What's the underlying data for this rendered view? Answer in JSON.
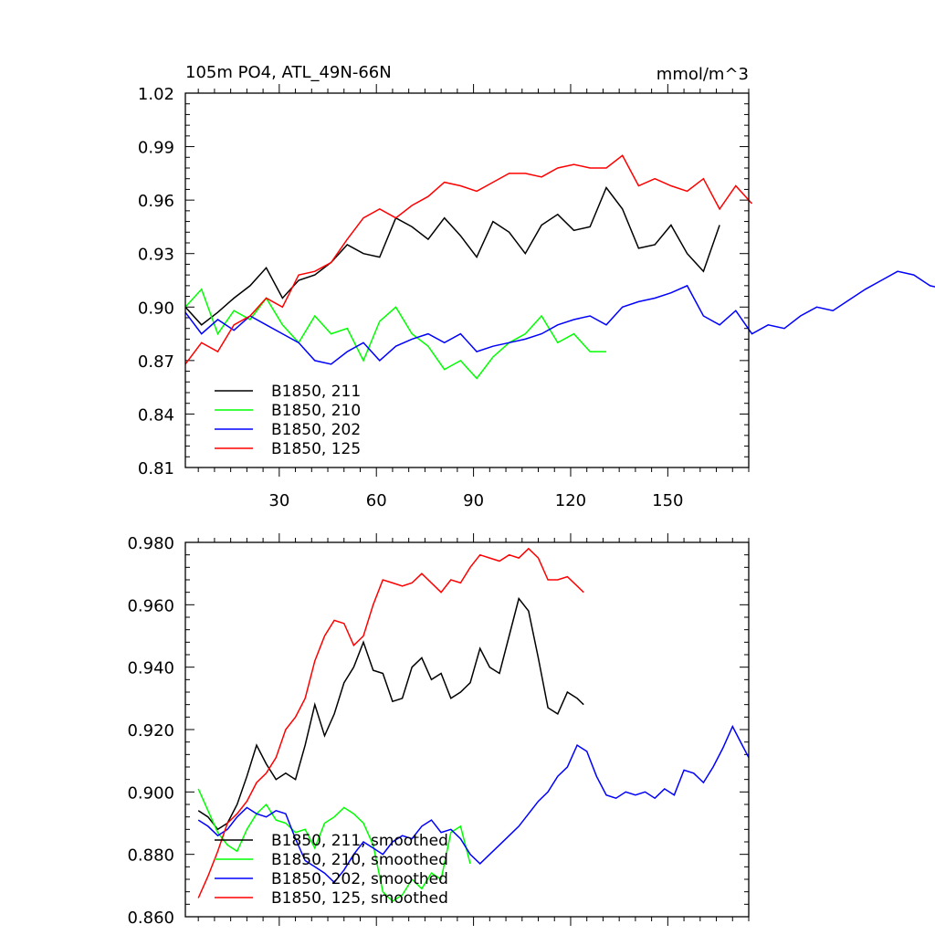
{
  "chart_data": [
    {
      "type": "line",
      "title": "105m PO4, ATL_49N-66N",
      "units": "mmol/m^3",
      "xlim": [
        1,
        175
      ],
      "ylim": [
        0.81,
        1.02
      ],
      "x_ticks": [
        30,
        60,
        90,
        120,
        150
      ],
      "x_tick_labels": [
        "30",
        "60",
        "90",
        "120",
        "150"
      ],
      "y_ticks": [
        0.81,
        0.84,
        0.87,
        0.9,
        0.93,
        0.96,
        0.99,
        1.02
      ],
      "y_tick_labels": [
        "0.81",
        "0.84",
        "0.87",
        "0.90",
        "0.93",
        "0.96",
        "0.99",
        "1.02"
      ],
      "legend_position": "bottom-left",
      "series": [
        {
          "name": "B1850, 211",
          "color": "#000000",
          "x_start": 1,
          "x_step": 5,
          "values": [
            0.9,
            0.89,
            0.897,
            0.905,
            0.912,
            0.922,
            0.905,
            0.915,
            0.918,
            0.925,
            0.935,
            0.93,
            0.928,
            0.95,
            0.945,
            0.938,
            0.95,
            0.94,
            0.928,
            0.948,
            0.942,
            0.93,
            0.946,
            0.952,
            0.943,
            0.945,
            0.967,
            0.955,
            0.933,
            0.935,
            0.946,
            0.93,
            0.92,
            0.946
          ]
        },
        {
          "name": "B1850, 210",
          "color": "#00ff00",
          "x_start": 1,
          "x_step": 5,
          "values": [
            0.9,
            0.91,
            0.885,
            0.898,
            0.893,
            0.905,
            0.89,
            0.88,
            0.895,
            0.885,
            0.888,
            0.87,
            0.892,
            0.9,
            0.885,
            0.878,
            0.865,
            0.87,
            0.86,
            0.872,
            0.88,
            0.885,
            0.895,
            0.88,
            0.885,
            0.875,
            0.875
          ]
        },
        {
          "name": "B1850, 202",
          "color": "#0000ff",
          "x_start": 1,
          "x_step": 5,
          "values": [
            0.897,
            0.885,
            0.893,
            0.887,
            0.895,
            0.89,
            0.885,
            0.88,
            0.87,
            0.868,
            0.875,
            0.88,
            0.87,
            0.878,
            0.882,
            0.885,
            0.88,
            0.885,
            0.875,
            0.878,
            0.88,
            0.882,
            0.885,
            0.89,
            0.893,
            0.895,
            0.89,
            0.9,
            0.903,
            0.905,
            0.908,
            0.912,
            0.895,
            0.89,
            0.898,
            0.885,
            0.89,
            0.888,
            0.895,
            0.9,
            0.898,
            0.904,
            0.91,
            0.915,
            0.92,
            0.918,
            0.912,
            0.91
          ]
        },
        {
          "name": "B1850, 125",
          "color": "#ff0000",
          "x_start": 1,
          "x_step": 5,
          "values": [
            0.868,
            0.88,
            0.875,
            0.89,
            0.895,
            0.905,
            0.9,
            0.918,
            0.92,
            0.925,
            0.938,
            0.95,
            0.955,
            0.95,
            0.957,
            0.962,
            0.97,
            0.968,
            0.965,
            0.97,
            0.975,
            0.975,
            0.973,
            0.978,
            0.98,
            0.978,
            0.978,
            0.985,
            0.968,
            0.972,
            0.968,
            0.965,
            0.972,
            0.955,
            0.968,
            0.958
          ]
        }
      ]
    },
    {
      "type": "line",
      "xlim": [
        1,
        175
      ],
      "ylim": [
        0.86,
        0.98
      ],
      "x_ticks": [
        30,
        60,
        90,
        120,
        150
      ],
      "y_ticks": [
        0.86,
        0.88,
        0.9,
        0.92,
        0.94,
        0.96,
        0.98
      ],
      "y_tick_labels": [
        "0.860",
        "0.880",
        "0.900",
        "0.920",
        "0.940",
        "0.960",
        "0.980"
      ],
      "legend_position": "bottom-left",
      "series": [
        {
          "name": "B1850, 211, smoothed",
          "color": "#000000",
          "x_start": 5,
          "points": [
            [
              5,
              0.894
            ],
            [
              8,
              0.892
            ],
            [
              11,
              0.888
            ],
            [
              14,
              0.89
            ],
            [
              17,
              0.896
            ],
            [
              20,
              0.905
            ],
            [
              23,
              0.915
            ],
            [
              26,
              0.909
            ],
            [
              29,
              0.904
            ],
            [
              32,
              0.906
            ],
            [
              35,
              0.904
            ],
            [
              38,
              0.915
            ],
            [
              41,
              0.928
            ],
            [
              44,
              0.918
            ],
            [
              47,
              0.925
            ],
            [
              50,
              0.935
            ],
            [
              53,
              0.94
            ],
            [
              56,
              0.948
            ],
            [
              59,
              0.939
            ],
            [
              62,
              0.938
            ],
            [
              65,
              0.929
            ],
            [
              68,
              0.93
            ],
            [
              71,
              0.94
            ],
            [
              74,
              0.943
            ],
            [
              77,
              0.936
            ],
            [
              80,
              0.938
            ],
            [
              83,
              0.93
            ],
            [
              86,
              0.932
            ],
            [
              89,
              0.935
            ],
            [
              92,
              0.946
            ],
            [
              95,
              0.94
            ],
            [
              98,
              0.938
            ],
            [
              101,
              0.95
            ],
            [
              104,
              0.962
            ],
            [
              107,
              0.958
            ],
            [
              110,
              0.943
            ],
            [
              113,
              0.927
            ],
            [
              116,
              0.925
            ],
            [
              119,
              0.932
            ],
            [
              122,
              0.93
            ],
            [
              124,
              0.928
            ]
          ]
        },
        {
          "name": "B1850, 210, smoothed",
          "color": "#00ff00",
          "x_start": 5,
          "points": [
            [
              5,
              0.901
            ],
            [
              8,
              0.894
            ],
            [
              11,
              0.887
            ],
            [
              14,
              0.883
            ],
            [
              17,
              0.881
            ],
            [
              20,
              0.888
            ],
            [
              23,
              0.893
            ],
            [
              26,
              0.896
            ],
            [
              29,
              0.891
            ],
            [
              32,
              0.89
            ],
            [
              35,
              0.887
            ],
            [
              38,
              0.888
            ],
            [
              41,
              0.882
            ],
            [
              44,
              0.89
            ],
            [
              47,
              0.892
            ],
            [
              50,
              0.895
            ],
            [
              53,
              0.893
            ],
            [
              56,
              0.89
            ],
            [
              59,
              0.883
            ],
            [
              62,
              0.868
            ],
            [
              65,
              0.865
            ],
            [
              68,
              0.867
            ],
            [
              71,
              0.872
            ],
            [
              74,
              0.869
            ],
            [
              77,
              0.874
            ],
            [
              80,
              0.872
            ],
            [
              83,
              0.887
            ],
            [
              86,
              0.889
            ],
            [
              89,
              0.877
            ]
          ]
        },
        {
          "name": "B1850, 202, smoothed",
          "color": "#0000ff",
          "x_start": 5,
          "points": [
            [
              5,
              0.891
            ],
            [
              8,
              0.889
            ],
            [
              11,
              0.886
            ],
            [
              14,
              0.888
            ],
            [
              17,
              0.892
            ],
            [
              20,
              0.895
            ],
            [
              23,
              0.893
            ],
            [
              26,
              0.892
            ],
            [
              29,
              0.894
            ],
            [
              32,
              0.893
            ],
            [
              35,
              0.885
            ],
            [
              38,
              0.878
            ],
            [
              41,
              0.876
            ],
            [
              44,
              0.874
            ],
            [
              47,
              0.871
            ],
            [
              50,
              0.875
            ],
            [
              53,
              0.88
            ],
            [
              56,
              0.884
            ],
            [
              59,
              0.882
            ],
            [
              62,
              0.88
            ],
            [
              65,
              0.884
            ],
            [
              68,
              0.886
            ],
            [
              71,
              0.885
            ],
            [
              74,
              0.889
            ],
            [
              77,
              0.891
            ],
            [
              80,
              0.887
            ],
            [
              83,
              0.888
            ],
            [
              86,
              0.885
            ],
            [
              89,
              0.88
            ],
            [
              92,
              0.877
            ],
            [
              95,
              0.88
            ],
            [
              98,
              0.883
            ],
            [
              101,
              0.886
            ],
            [
              104,
              0.889
            ],
            [
              107,
              0.893
            ],
            [
              110,
              0.897
            ],
            [
              113,
              0.9
            ],
            [
              116,
              0.905
            ],
            [
              119,
              0.908
            ],
            [
              122,
              0.915
            ],
            [
              125,
              0.913
            ],
            [
              128,
              0.905
            ],
            [
              131,
              0.899
            ],
            [
              134,
              0.898
            ],
            [
              137,
              0.9
            ],
            [
              140,
              0.899
            ],
            [
              143,
              0.9
            ],
            [
              146,
              0.898
            ],
            [
              149,
              0.901
            ],
            [
              152,
              0.899
            ],
            [
              155,
              0.907
            ],
            [
              158,
              0.906
            ],
            [
              161,
              0.903
            ],
            [
              164,
              0.908
            ],
            [
              167,
              0.914
            ],
            [
              170,
              0.921
            ],
            [
              173,
              0.915
            ],
            [
              175,
              0.911
            ]
          ]
        },
        {
          "name": "B1850, 125, smoothed",
          "color": "#ff0000",
          "x_start": 5,
          "points": [
            [
              5,
              0.866
            ],
            [
              8,
              0.873
            ],
            [
              11,
              0.881
            ],
            [
              14,
              0.89
            ],
            [
              17,
              0.893
            ],
            [
              20,
              0.897
            ],
            [
              23,
              0.903
            ],
            [
              26,
              0.906
            ],
            [
              29,
              0.911
            ],
            [
              32,
              0.92
            ],
            [
              35,
              0.924
            ],
            [
              38,
              0.93
            ],
            [
              41,
              0.942
            ],
            [
              44,
              0.95
            ],
            [
              47,
              0.955
            ],
            [
              50,
              0.954
            ],
            [
              53,
              0.947
            ],
            [
              56,
              0.95
            ],
            [
              59,
              0.96
            ],
            [
              62,
              0.968
            ],
            [
              65,
              0.967
            ],
            [
              68,
              0.966
            ],
            [
              71,
              0.967
            ],
            [
              74,
              0.97
            ],
            [
              77,
              0.967
            ],
            [
              80,
              0.964
            ],
            [
              83,
              0.968
            ],
            [
              86,
              0.967
            ],
            [
              89,
              0.972
            ],
            [
              92,
              0.976
            ],
            [
              95,
              0.975
            ],
            [
              98,
              0.974
            ],
            [
              101,
              0.976
            ],
            [
              104,
              0.975
            ],
            [
              107,
              0.978
            ],
            [
              110,
              0.975
            ],
            [
              113,
              0.968
            ],
            [
              116,
              0.968
            ],
            [
              119,
              0.969
            ],
            [
              122,
              0.966
            ],
            [
              124,
              0.964
            ]
          ]
        }
      ]
    }
  ]
}
